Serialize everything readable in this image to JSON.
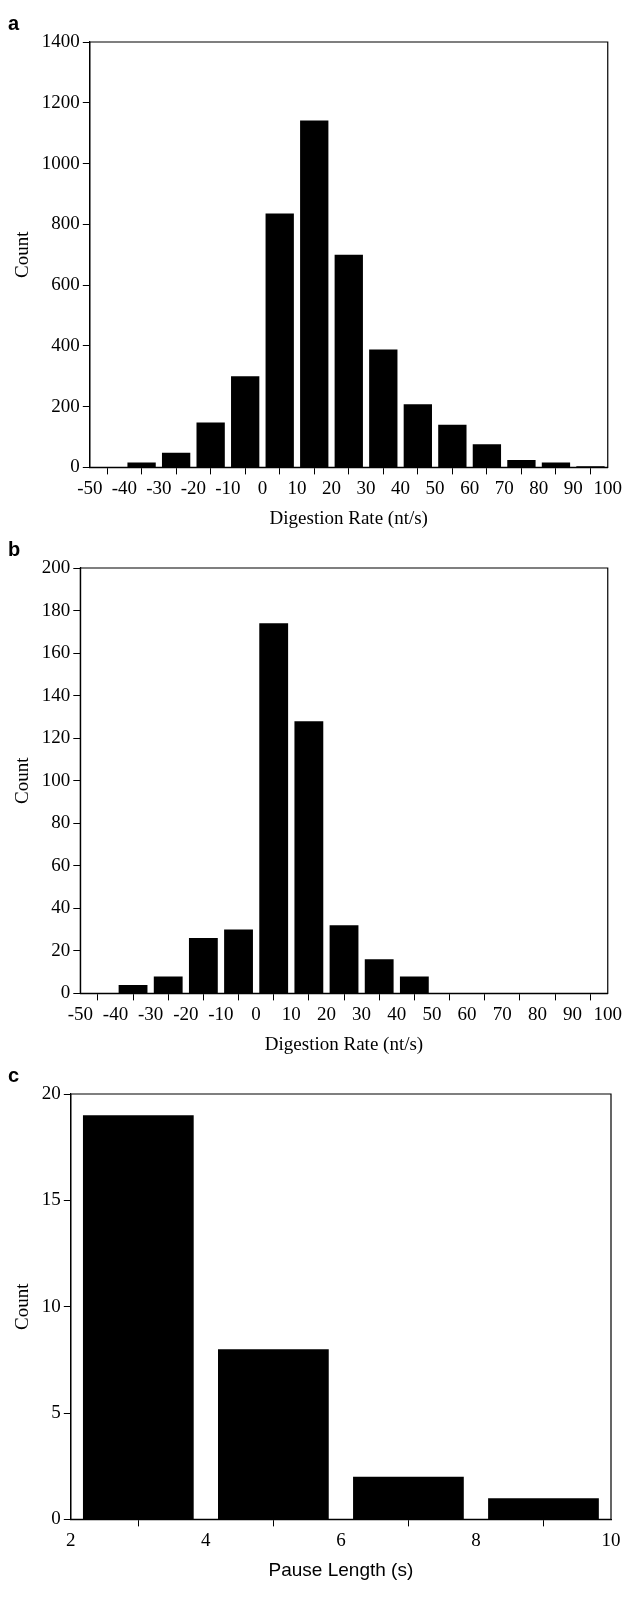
{
  "chart_data": [
    {
      "type": "histogram",
      "title": "a",
      "xlabel": "Digestion Rate (nt/s)",
      "ylabel": "Count",
      "bins": [
        -50,
        -40,
        -30,
        -20,
        -10,
        0,
        10,
        20,
        30,
        40,
        50,
        60,
        70,
        80,
        90,
        100
      ],
      "values": [
        0,
        16,
        48,
        148,
        300,
        836,
        1142,
        700,
        388,
        208,
        140,
        76,
        24,
        16,
        4
      ],
      "color": "#000000",
      "xlim": [
        -50,
        100
      ],
      "xticks": [
        -50,
        -40,
        -30,
        -20,
        -10,
        0,
        10,
        20,
        30,
        40,
        50,
        60,
        70,
        80,
        90,
        100
      ],
      "ylim": [
        0,
        1400
      ],
      "yticks": [
        0,
        200,
        400,
        600,
        800,
        1000,
        1200,
        1400
      ],
      "grid": false,
      "legend": false
    },
    {
      "type": "histogram",
      "title": "b",
      "xlabel": "Digestion Rate (nt/s)",
      "ylabel": "Count",
      "bins": [
        -50,
        -40,
        -30,
        -20,
        -10,
        0,
        10,
        20,
        30,
        40,
        50,
        60,
        70,
        80,
        90,
        100
      ],
      "values": [
        0,
        4,
        8,
        26,
        30,
        174,
        128,
        32,
        16,
        8,
        0,
        0,
        0,
        0,
        0
      ],
      "color": "#000000",
      "xlim": [
        -50,
        100
      ],
      "xticks": [
        -50,
        -40,
        -30,
        -20,
        -10,
        0,
        10,
        20,
        30,
        40,
        50,
        60,
        70,
        80,
        90,
        100
      ],
      "ylim": [
        0,
        200
      ],
      "yticks": [
        0,
        20,
        40,
        60,
        80,
        100,
        120,
        140,
        160,
        180,
        200
      ],
      "grid": false,
      "legend": false
    },
    {
      "type": "histogram",
      "title": "c",
      "xlabel": "Pause Length (s)",
      "ylabel": "Count",
      "bins": [
        2,
        4,
        6,
        8,
        10
      ],
      "values": [
        19,
        8,
        2,
        1
      ],
      "color": "#000000",
      "xlim": [
        2,
        10
      ],
      "xticks": [
        2,
        4,
        6,
        8,
        10
      ],
      "ylim": [
        0,
        20
      ],
      "yticks": [
        0,
        5,
        10,
        15,
        20
      ],
      "grid": false,
      "legend": false
    }
  ]
}
